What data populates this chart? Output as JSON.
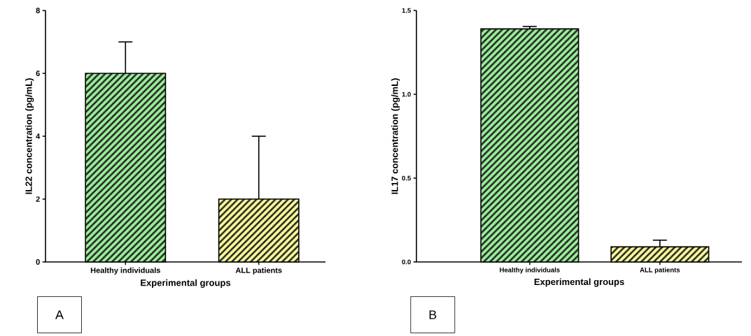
{
  "chart_data": [
    {
      "type": "bar",
      "categories": [
        "Healthy individuals",
        "ALL patients"
      ],
      "values": [
        6,
        2
      ],
      "colors": [
        "#99f099",
        "#ffff99"
      ],
      "errors": [
        [
          6,
          7
        ],
        [
          2,
          4
        ]
      ],
      "ylim": [
        0,
        8
      ],
      "yticks": [
        0,
        2,
        4,
        6,
        8
      ],
      "xlabel": "Experimental groups",
      "ylabel": "IL22 concentration (pg/mL)",
      "grid": false,
      "annotations": [
        "A"
      ]
    },
    {
      "type": "bar",
      "categories": [
        "Healthy individuals",
        "ALL patients"
      ],
      "values": [
        1.39,
        0.09
      ],
      "colors": [
        "#99f099",
        "#ffff99"
      ],
      "errors": [
        [
          1.39,
          1.405
        ],
        [
          0.09,
          0.13
        ]
      ],
      "ylim": [
        0,
        1.5
      ],
      "yticks": [
        {
          "value": 0,
          "label": "0.0"
        },
        {
          "value": 0.5,
          "label": "0.5"
        },
        {
          "value": 1.0,
          "label": "1.0"
        },
        {
          "value": 1.5,
          "label": "1.5"
        }
      ],
      "xlabel": "Experimental groups",
      "ylabel": "IL17 concentration (pg/mL)",
      "grid": false,
      "annotations": [
        "B"
      ]
    }
  ]
}
